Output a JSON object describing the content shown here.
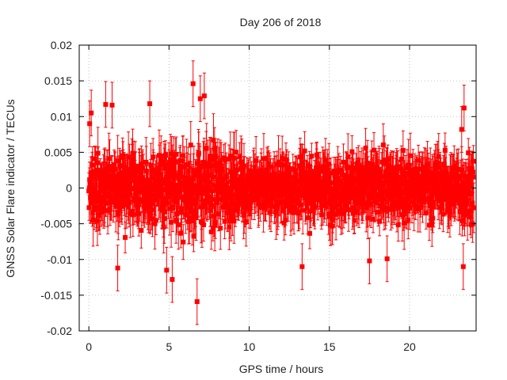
{
  "chart_data": {
    "type": "scatter",
    "title": "Day 206 of 2018",
    "xlabel": "GPS time / hours",
    "ylabel": "GNSS Solar Flare indicator / TECUs",
    "xlim": [
      -0.6,
      24.15
    ],
    "ylim": [
      -0.02,
      0.02
    ],
    "x_ticks": [
      0,
      5,
      10,
      15,
      20
    ],
    "x_tick_labels": [
      "0",
      "5",
      "10",
      "15",
      "20"
    ],
    "y_ticks": [
      -0.02,
      -0.015,
      -0.01,
      -0.005,
      0,
      0.005,
      0.01,
      0.015,
      0.02
    ],
    "y_tick_labels": [
      "-0.02",
      "-0.015",
      "-0.01",
      "-0.005",
      "0",
      "0.005",
      "0.01",
      "0.015",
      "0.02"
    ],
    "grid": true,
    "series": [
      {
        "name": "GNSS Solar Flare indicator",
        "color": "#ff0000",
        "marker": "square",
        "error_bars": true,
        "x_start": 0,
        "x_end": 24,
        "n_points": 1440,
        "typical_spread": 0.0035,
        "typical_error": 0.0025,
        "notable_points": [
          {
            "x": 0.05,
            "y": 0.009
          },
          {
            "x": 0.15,
            "y": 0.0105
          },
          {
            "x": 1.05,
            "y": 0.0117
          },
          {
            "x": 1.45,
            "y": 0.0116
          },
          {
            "x": 1.8,
            "y": -0.0112
          },
          {
            "x": 3.8,
            "y": 0.0118
          },
          {
            "x": 4.85,
            "y": -0.0115
          },
          {
            "x": 5.2,
            "y": -0.0128
          },
          {
            "x": 6.5,
            "y": 0.0146
          },
          {
            "x": 6.75,
            "y": -0.0159
          },
          {
            "x": 6.95,
            "y": 0.0125
          },
          {
            "x": 7.2,
            "y": 0.0129
          },
          {
            "x": 13.3,
            "y": -0.011
          },
          {
            "x": 17.5,
            "y": -0.0102
          },
          {
            "x": 18.6,
            "y": -0.0099
          },
          {
            "x": 23.4,
            "y": 0.0112
          },
          {
            "x": 23.35,
            "y": -0.011
          },
          {
            "x": 23.25,
            "y": 0.0082
          }
        ]
      }
    ]
  }
}
